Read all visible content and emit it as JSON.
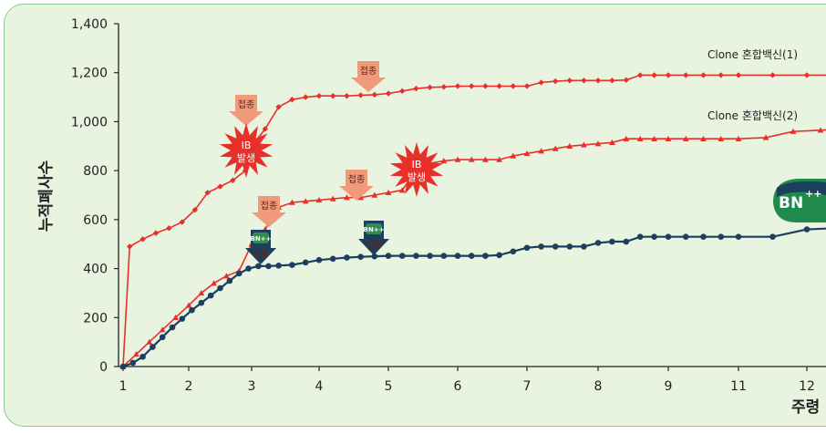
{
  "chart_data": {
    "type": "line",
    "ylabel": "누적폐사수",
    "xlabel": "주령",
    "ylim": [
      0,
      1400
    ],
    "yticks": [
      "0",
      "200",
      "400",
      "600",
      "800",
      "1,000",
      "1,200",
      "1,400"
    ],
    "xticks": [
      "1",
      "2",
      "3",
      "4",
      "5",
      "6",
      "7",
      "8",
      "9",
      "11",
      "12"
    ],
    "colors": {
      "red": "#e8302a",
      "navy": "#1c3f5e"
    },
    "series": [
      {
        "name": "Clone 혼합백신(1)",
        "color": "#e8302a",
        "marker": "diamond",
        "x": [
          1,
          1.1,
          1.3,
          1.5,
          1.7,
          1.9,
          2.1,
          2.3,
          2.5,
          2.7,
          2.9,
          3.0,
          3.2,
          3.4,
          3.6,
          3.8,
          4.0,
          4.2,
          4.4,
          4.6,
          4.8,
          5.0,
          5.2,
          5.4,
          5.6,
          5.8,
          6.0,
          6.2,
          6.4,
          6.6,
          6.8,
          7.0,
          7.2,
          7.4,
          7.6,
          7.8,
          8.0,
          8.2,
          8.4,
          8.6,
          8.8,
          9.0,
          9.5,
          10.0,
          10.5,
          11.0,
          11.5,
          12.0,
          12.4
        ],
        "values": [
          0,
          490,
          520,
          545,
          565,
          590,
          640,
          710,
          735,
          760,
          800,
          900,
          970,
          1060,
          1090,
          1100,
          1105,
          1105,
          1105,
          1108,
          1110,
          1115,
          1125,
          1135,
          1140,
          1142,
          1145,
          1145,
          1145,
          1145,
          1145,
          1145,
          1160,
          1165,
          1168,
          1168,
          1168,
          1168,
          1170,
          1190,
          1190,
          1190,
          1190,
          1190,
          1190,
          1190,
          1190,
          1190,
          1190
        ]
      },
      {
        "name": "Clone 혼합백신(2)",
        "color": "#e8302a",
        "marker": "triangle",
        "x": [
          1,
          1.2,
          1.4,
          1.6,
          1.8,
          2.0,
          2.2,
          2.4,
          2.6,
          2.8,
          3.0,
          3.2,
          3.4,
          3.6,
          3.8,
          4.0,
          4.2,
          4.4,
          4.6,
          4.8,
          5.0,
          5.2,
          5.4,
          5.6,
          5.8,
          6.0,
          6.2,
          6.4,
          6.6,
          6.8,
          7.0,
          7.2,
          7.4,
          7.6,
          7.8,
          8.0,
          8.2,
          8.4,
          8.6,
          8.8,
          9.0,
          9.5,
          10.0,
          10.5,
          11.0,
          11.4,
          11.8,
          12.2,
          12.5
        ],
        "values": [
          0,
          50,
          100,
          150,
          200,
          250,
          300,
          340,
          370,
          390,
          500,
          560,
          650,
          670,
          675,
          680,
          685,
          690,
          690,
          700,
          710,
          720,
          800,
          830,
          840,
          845,
          845,
          845,
          845,
          860,
          870,
          880,
          890,
          900,
          905,
          910,
          915,
          930,
          930,
          930,
          930,
          930,
          930,
          930,
          930,
          935,
          960,
          965,
          970
        ]
      },
      {
        "name": "",
        "color": "#1c3f5e",
        "marker": "circle",
        "x": [
          1,
          1.15,
          1.3,
          1.45,
          1.6,
          1.75,
          1.9,
          2.05,
          2.2,
          2.35,
          2.5,
          2.65,
          2.8,
          2.95,
          3.1,
          3.25,
          3.4,
          3.6,
          3.8,
          4.0,
          4.2,
          4.4,
          4.6,
          4.8,
          5.0,
          5.2,
          5.4,
          5.6,
          5.8,
          6.0,
          6.2,
          6.4,
          6.6,
          6.8,
          7.0,
          7.2,
          7.4,
          7.6,
          7.8,
          8.0,
          8.2,
          8.4,
          8.6,
          8.8,
          9.0,
          9.5,
          10.0,
          10.5,
          11.0,
          11.5,
          12.0,
          12.4
        ],
        "values": [
          0,
          15,
          40,
          80,
          120,
          160,
          195,
          230,
          260,
          290,
          320,
          350,
          380,
          400,
          410,
          410,
          412,
          415,
          425,
          435,
          440,
          445,
          448,
          450,
          452,
          452,
          452,
          452,
          452,
          452,
          452,
          452,
          455,
          470,
          485,
          490,
          490,
          490,
          490,
          505,
          510,
          510,
          530,
          530,
          530,
          530,
          530,
          530,
          530,
          530,
          560,
          565
        ]
      }
    ],
    "annotations": {
      "inject_label": "접종",
      "outbreak_label_1": "IB",
      "outbreak_label_2": "발생",
      "bn_logo": "BN",
      "bn_plus": "++"
    }
  }
}
